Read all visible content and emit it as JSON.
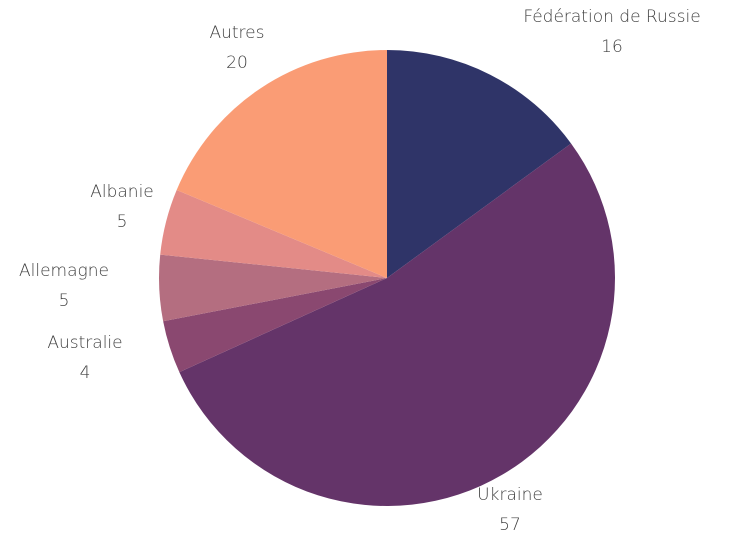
{
  "chart_data": {
    "type": "pie",
    "categories": [
      "Fédération de Russie",
      "Ukraine",
      "Australie",
      "Allemagne",
      "Albanie",
      "Autres"
    ],
    "values": [
      16,
      57,
      4,
      5,
      5,
      20
    ],
    "colors": [
      "#2f3468",
      "#643469",
      "#8a4870",
      "#b46e80",
      "#e38b87",
      "#fa9c75"
    ]
  }
}
